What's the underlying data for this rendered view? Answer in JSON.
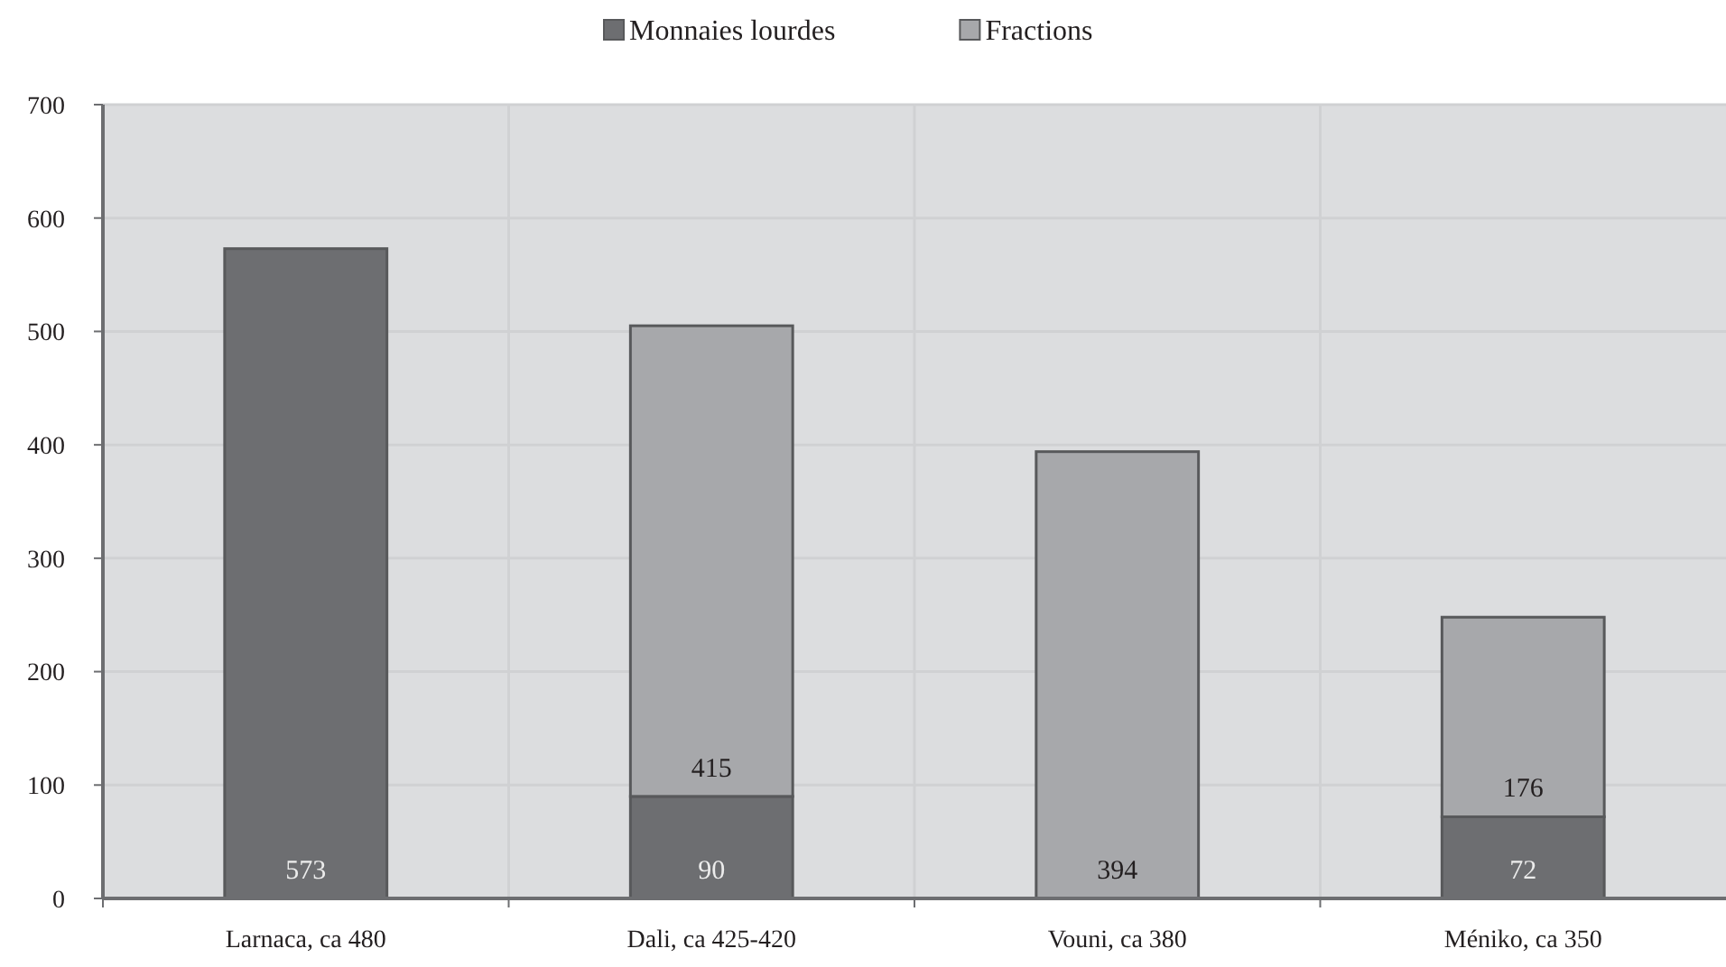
{
  "chart_data": {
    "type": "bar",
    "stacked": true,
    "categories": [
      "Larnaca, ca 480",
      "Dali, ca 425-420",
      "Vouni, ca 380",
      "Méniko, ca 350"
    ],
    "series": [
      {
        "name": "Monnaies lourdes",
        "color": "#6d6e71",
        "values": [
          573,
          90,
          null,
          72
        ]
      },
      {
        "name": "Fractions",
        "color": "#a7a8ab",
        "values": [
          null,
          415,
          394,
          176
        ]
      }
    ],
    "ylim": [
      0,
      700
    ],
    "yticks": [
      0,
      100,
      200,
      300,
      400,
      500,
      600,
      700
    ],
    "grid": true,
    "legend": "top",
    "data_labels": true
  }
}
